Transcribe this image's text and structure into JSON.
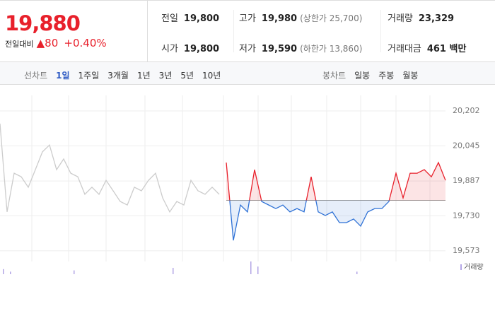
{
  "quote": {
    "price": "19,880",
    "change_label": "전일대비",
    "change": "▲80",
    "change_pct": "+0.40%"
  },
  "stats": [
    [
      {
        "label": "전일",
        "value": "19,800"
      },
      {
        "label": "시가",
        "value": "19,800"
      }
    ],
    [
      {
        "label": "고가",
        "value": "19,980",
        "note": "(상한가 25,700)"
      },
      {
        "label": "저가",
        "value": "19,590",
        "note": "(하한가 13,860)"
      }
    ],
    [
      {
        "label": "거래량",
        "value": "23,329"
      },
      {
        "label": "거래대금",
        "value": "461 백만"
      }
    ]
  ],
  "line_tabs": {
    "label": "선차트",
    "items": [
      "1일",
      "1주일",
      "3개월",
      "1년",
      "3년",
      "5년",
      "10년"
    ],
    "active": 0
  },
  "candle_tabs": {
    "label": "봉차트",
    "items": [
      "일봉",
      "주봉",
      "월봉"
    ]
  },
  "chart_data": {
    "type": "line",
    "ylim": [
      19541,
      20272
    ],
    "yticks": [
      {
        "value": 20202,
        "label": "20,202"
      },
      {
        "value": 20045,
        "label": "20,045"
      },
      {
        "value": 19887,
        "label": "19,887"
      },
      {
        "value": 19730,
        "label": "19,730"
      },
      {
        "value": 19573,
        "label": "19,573"
      }
    ],
    "grid": true,
    "baseline": 19800,
    "series": [
      {
        "color": "#cccccc",
        "values": [
          20145,
          19748,
          19922,
          19906,
          19859,
          19938,
          20018,
          20049,
          19938,
          19986,
          19922,
          19906,
          19827,
          19859,
          19827,
          19890,
          19843,
          19795,
          19779,
          19859,
          19843,
          19890,
          19922,
          19811,
          19748,
          19795,
          19779,
          19890,
          19843,
          19827,
          19859,
          19827,
          null,
          null,
          null,
          null,
          null,
          null,
          null,
          null,
          null,
          null,
          null,
          null,
          null,
          null,
          null,
          null,
          null,
          null,
          null,
          null,
          null,
          null,
          null,
          null,
          null,
          null,
          null,
          null,
          null,
          null,
          null,
          null
        ]
      },
      {
        "up_color": "#e8202b",
        "down_color": "#2f72d6",
        "values": [
          null,
          null,
          null,
          null,
          null,
          null,
          null,
          null,
          null,
          null,
          null,
          null,
          null,
          null,
          null,
          null,
          null,
          null,
          null,
          null,
          null,
          null,
          null,
          null,
          null,
          null,
          null,
          null,
          null,
          null,
          null,
          null,
          19970,
          19620,
          19779,
          19748,
          19938,
          19795,
          19779,
          19763,
          19779,
          19748,
          19763,
          19748,
          19906,
          19748,
          19732,
          19748,
          19700,
          19700,
          19716,
          19684,
          19748,
          19763,
          19763,
          19795,
          19922,
          19811,
          19922,
          19922,
          19938,
          19906,
          19970,
          19890
        ]
      }
    ],
    "volume": {
      "name": "거래량",
      "color": "#b3a6e6",
      "lim": [
        0,
        100
      ],
      "values": [
        40,
        20,
        null,
        null,
        null,
        null,
        null,
        null,
        null,
        null,
        30,
        null,
        null,
        null,
        null,
        null,
        null,
        null,
        null,
        null,
        null,
        null,
        null,
        null,
        50,
        null,
        null,
        null,
        null,
        null,
        null,
        null,
        null,
        null,
        null,
        100,
        60,
        null,
        null,
        null,
        null,
        null,
        null,
        null,
        null,
        null,
        null,
        null,
        null,
        null,
        20,
        null,
        null,
        null,
        null,
        null,
        null,
        null,
        null,
        null,
        null,
        null,
        null,
        null
      ]
    }
  }
}
